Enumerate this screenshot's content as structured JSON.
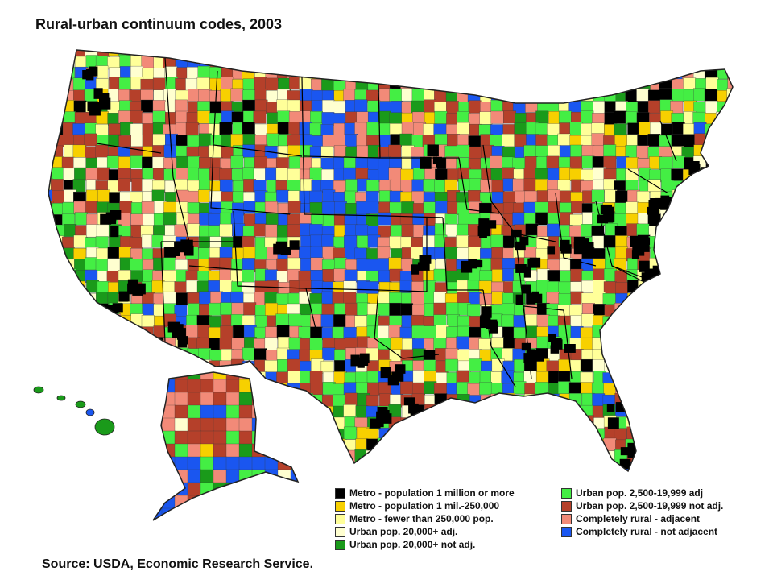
{
  "title": "Rural-urban continuum codes, 2003",
  "source": "Source: USDA, Economic Research Service.",
  "legend": [
    {
      "label": "Metro - population 1 million or more",
      "color": "#000000",
      "code": "1"
    },
    {
      "label": "Metro - population 1 mil.-250,000",
      "color": "#f7d000",
      "code": "2"
    },
    {
      "label": "Metro - fewer than 250,000 pop.",
      "color": "#ffff99",
      "code": "3"
    },
    {
      "label": "Urban pop. 20,000+ adj.",
      "color": "#ffffd0",
      "code": "4"
    },
    {
      "label": "Urban pop. 20,000+ not adj.",
      "color": "#1a9a1a",
      "code": "5"
    },
    {
      "label": "Urban pop. 2,500-19,999 adj",
      "color": "#44ee44",
      "code": "6"
    },
    {
      "label": "Urban pop. 2,500-19,999 not adj.",
      "color": "#b5402a",
      "code": "7"
    },
    {
      "label": "Completely rural - adjacent",
      "color": "#f28a78",
      "code": "8"
    },
    {
      "label": "Completely rural - not adjacent",
      "color": "#1a56f0",
      "code": "9"
    }
  ],
  "colors": {
    "border": "#222222",
    "state_lines": "#000000"
  }
}
